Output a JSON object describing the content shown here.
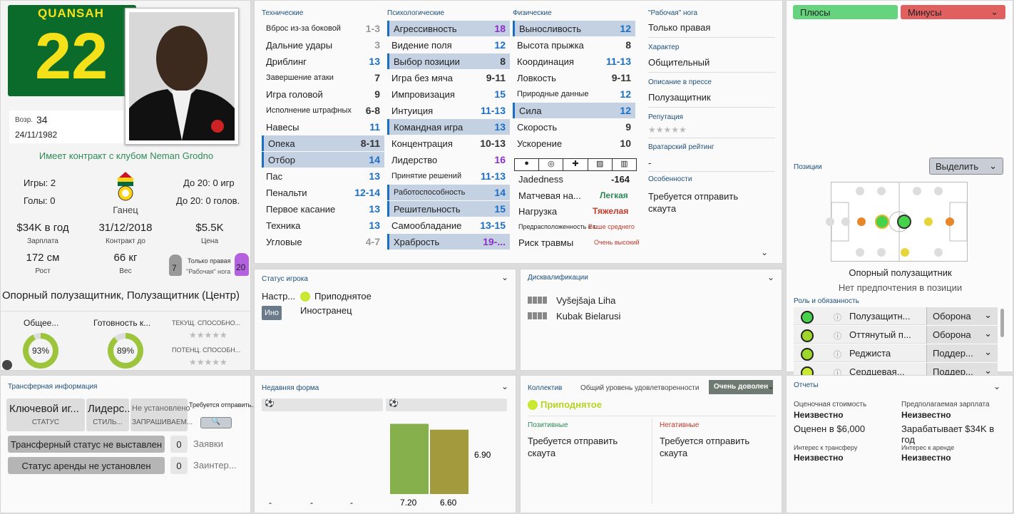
{
  "player": {
    "surname": "QUANSAH",
    "number": "22",
    "age_label": "Возр.",
    "age": "34",
    "dob": "24/11/1982",
    "contract_text": "Имеет контракт с клубом Neman Grodno",
    "games": "Игры: 2",
    "goals": "Голы: 0",
    "u20_games": "До 20: 0 игр",
    "u20_goals": "До 20: 0 голов.",
    "nation": "Ганец",
    "wage": "$34K в год",
    "wage_label": "Зарплата",
    "contract_end": "31/12/2018",
    "contract_label": "Контракт до",
    "value": "$5.5K",
    "value_label": "Цена",
    "height": "172 см",
    "height_label": "Рост",
    "weight": "66 кг",
    "weight_label": "Вес",
    "left_foot": "7",
    "right_foot": "20",
    "foot_text": "Только правая",
    "foot_label": "\"Рабочая\" нога",
    "positions": "Опорный полузащитник, Полузащитник (Центр)",
    "overall_label": "Общее...",
    "overall": "93%",
    "overall_pct": 93,
    "fitness_label": "Готовность к...",
    "fitness": "89%",
    "fitness_pct": 89,
    "cur_ability": "ТЕКУЩ. СПОСОБНО...",
    "pot_ability": "ПОТЕНЦ. СПОСОБН..."
  },
  "attrs": {
    "tech_header": "Технические",
    "mental_header": "Психологические",
    "phys_header": "Физические",
    "technical": [
      [
        "Вброс из-за боковой",
        "1-3",
        false,
        "gray",
        true
      ],
      [
        "Дальние удары",
        "3",
        false,
        "gray",
        false
      ],
      [
        "Дриблинг",
        "13",
        false,
        "blue",
        false
      ],
      [
        "Завершение атаки",
        "7",
        false,
        "dark",
        true
      ],
      [
        "Игра головой",
        "9",
        false,
        "dark",
        false
      ],
      [
        "Исполнение штрафных",
        "6-8",
        false,
        "dark",
        true
      ],
      [
        "Навесы",
        "11",
        false,
        "blue",
        false
      ],
      [
        "Опека",
        "8-11",
        true,
        "dark",
        false
      ],
      [
        "Отбор",
        "14",
        true,
        "blue",
        false
      ],
      [
        "Пас",
        "13",
        false,
        "blue",
        false
      ],
      [
        "Пенальти",
        "12-14",
        false,
        "blue",
        false
      ],
      [
        "Первое касание",
        "13",
        false,
        "blue",
        false
      ],
      [
        "Техника",
        "13",
        false,
        "blue",
        false
      ],
      [
        "Угловые",
        "4-7",
        false,
        "gray",
        false
      ]
    ],
    "mental": [
      [
        "Агрессивность",
        "18",
        true,
        "purple",
        false
      ],
      [
        "Видение поля",
        "12",
        false,
        "blue",
        false
      ],
      [
        "Выбор позиции",
        "8",
        true,
        "dark",
        false
      ],
      [
        "Игра без мяча",
        "9-11",
        false,
        "dark",
        false
      ],
      [
        "Импровизация",
        "15",
        false,
        "blue",
        false
      ],
      [
        "Интуиция",
        "11-13",
        false,
        "blue",
        false
      ],
      [
        "Командная игра",
        "13",
        true,
        "blue",
        false
      ],
      [
        "Концентрация",
        "10-13",
        false,
        "dark",
        false
      ],
      [
        "Лидерство",
        "16",
        false,
        "purple",
        false
      ],
      [
        "Принятие решений",
        "11-13",
        false,
        "blue",
        true
      ],
      [
        "Работоспособность",
        "14",
        true,
        "blue",
        true
      ],
      [
        "Решительность",
        "15",
        true,
        "blue",
        false
      ],
      [
        "Самообладание",
        "13-15",
        false,
        "blue",
        false
      ],
      [
        "Храбрость",
        "19-...",
        true,
        "purple",
        false
      ]
    ],
    "physical": [
      [
        "Выносливость",
        "12",
        true,
        "blue",
        false
      ],
      [
        "Высота прыжка",
        "8",
        false,
        "dark",
        false
      ],
      [
        "Координация",
        "11-13",
        false,
        "blue",
        false
      ],
      [
        "Ловкость",
        "9-11",
        false,
        "dark",
        false
      ],
      [
        "Природные данные",
        "12",
        false,
        "blue",
        true
      ],
      [
        "Сила",
        "12",
        true,
        "blue",
        false
      ],
      [
        "Скорость",
        "9",
        false,
        "dark",
        false
      ],
      [
        "Ускорение",
        "10",
        false,
        "dark",
        false
      ]
    ]
  },
  "medical": {
    "jadedness_label": "Jadedness",
    "jadedness": "-164",
    "match_load_label": "Матчевая на...",
    "match_load": "Легкая",
    "load_label": "Нагрузка",
    "load": "Тяжелая",
    "injury_prone_label": "Предрасположенность к т...",
    "injury_prone": "Выше среднего",
    "injury_risk_label": "Риск травмы",
    "injury_risk": "Очень высокий"
  },
  "info": {
    "foot_label": "\"Рабочая\" нога",
    "foot": "Только правая",
    "personality_label": "Характер",
    "personality": "Общительный",
    "press_label": "Описание в прессе",
    "press": "Полузащитник",
    "rep_label": "Репутация",
    "gk_label": "Вратарский рейтинг",
    "gk": "-",
    "traits_label": "Особенности",
    "traits": "Требуется отправить скаута"
  },
  "pros_cons": {
    "pros": "Плюсы",
    "cons": "Минусы"
  },
  "positions_panel": {
    "title": "Позиции",
    "highlight": "Выделить",
    "pos_name": "Опорный полузащитник",
    "pos_pref": "Нет предпочтения в позиции",
    "roles_title": "Роль и обязанность",
    "roles": [
      [
        "Полузащитн...",
        "Оборона"
      ],
      [
        "Оттянутый п...",
        "Оборона"
      ],
      [
        "Реджиста",
        "Поддер..."
      ],
      [
        "Сердцевая...",
        "Поддер..."
      ]
    ]
  },
  "status": {
    "title": "Статус игрока",
    "mood_label": "Настр...",
    "mood": "Приподнятое",
    "foreigner_badge": "Ино",
    "foreigner": "Иностранец"
  },
  "bans": {
    "title": "Дисквалификации",
    "items": [
      "Vyšejšaja Liha",
      "Kubak Bielarusi"
    ]
  },
  "transfer": {
    "title": "Трансферная информация",
    "status_val": "Ключевой иг...",
    "status_lbl": "СТАТУС",
    "style_val": "Лидерс...",
    "style_lbl": "СТИЛЬ...",
    "asking_val": "Не установлено",
    "asking_lbl": "ЗАПРАШИВАЕМ...",
    "scout_text": "Требуется отправить...",
    "transfer_status": "Трансферный статус не выставлен",
    "bids_count": "0",
    "bids_label": "Заявки",
    "loan_status": "Статус аренды не установлен",
    "interest_count": "0",
    "interest_label": "Заинтер..."
  },
  "form": {
    "title": "Недавняя форма",
    "dashes": [
      "-",
      "-",
      "-"
    ],
    "bar_values": [
      "7.20",
      "6.60"
    ],
    "side_value": "6.90"
  },
  "squad": {
    "title": "Коллектив",
    "satisfaction_label": "Общий уровень удовлетворенности",
    "satisfaction": "Очень доволен",
    "mood": "Приподнятое",
    "positive_label": "Позитивные",
    "positive": "Требуется отправить скаута",
    "negative_label": "Негативные",
    "negative": "Требуется отправить скаута"
  },
  "reports": {
    "title": "Отчеты",
    "est_value_label": "Оценочная стоимость",
    "est_value": "Неизвестно",
    "valued": "Оценен в $6,000",
    "exp_wage_label": "Предполагаемая зарплата",
    "exp_wage": "Неизвестно",
    "earns": "Зарабатывает $34K в год",
    "transfer_int_label": "Интерес к трансферу",
    "transfer_int": "Неизвестно",
    "loan_int_label": "Интерес к аренде",
    "loan_int": "Неизвестно"
  }
}
